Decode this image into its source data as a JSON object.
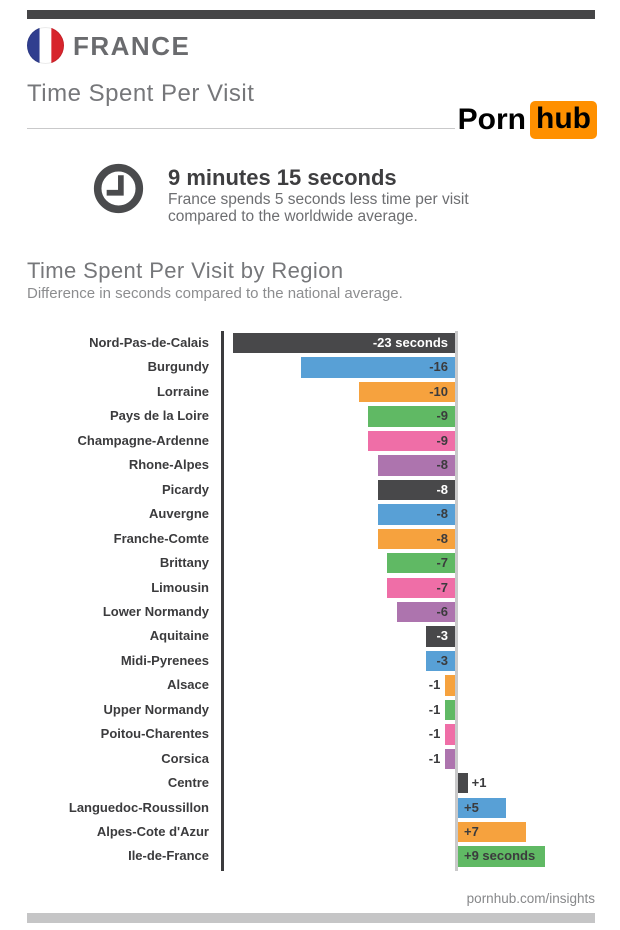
{
  "header": {
    "country": "FRANCE",
    "title": "Time Spent Per Visit",
    "flag": {
      "blue": "#303e8f",
      "white": "#ffffff",
      "red": "#d7242c"
    },
    "logo": {
      "porn": "Porn",
      "hub": "hub",
      "hub_bg": "#ff9000"
    }
  },
  "stat": {
    "clock_icon_color": "#4a4b4d",
    "headline": "9 minutes 15 seconds",
    "line1": "France spends 5 seconds less time per visit",
    "line2": "compared to the worldwide average."
  },
  "section": {
    "title": "Time Spent Per Visit by Region",
    "subtitle": "Difference in seconds compared to the national average."
  },
  "chart_data": {
    "type": "bar",
    "orientation": "horizontal",
    "title": "Time Spent Per Visit by Region",
    "subtitle": "Difference in seconds compared to the national average.",
    "unit": "seconds",
    "xlim": [
      -23,
      9
    ],
    "grid": false,
    "legend": "none",
    "categories": [
      "Nord-Pas-de-Calais",
      "Burgundy",
      "Lorraine",
      "Pays de la Loire",
      "Champagne-Ardenne",
      "Rhone-Alpes",
      "Picardy",
      "Auvergne",
      "Franche-Comte",
      "Brittany",
      "Limousin",
      "Lower Normandy",
      "Aquitaine",
      "Midi-Pyrenees",
      "Alsace",
      "Upper Normandy",
      "Poitou-Charentes",
      "Corsica",
      "Centre",
      "Languedoc-Roussillon",
      "Alpes-Cote d'Azur",
      "Ile-de-France"
    ],
    "values": [
      -23,
      -16,
      -10,
      -9,
      -9,
      -8,
      -8,
      -8,
      -8,
      -7,
      -7,
      -6,
      -3,
      -3,
      -1,
      -1,
      -1,
      -1,
      1,
      5,
      7,
      9
    ],
    "value_labels": [
      "-23 seconds",
      "-16",
      "-10",
      "-9",
      "-9",
      "-8",
      "-8",
      "-8",
      "-8",
      "-7",
      "-7",
      "-6",
      "-3",
      "-3",
      "-1",
      "-1",
      "-1",
      "-1",
      "+1",
      "+5",
      "+7",
      "+9 seconds"
    ],
    "palette": [
      "#48484a",
      "#58a0d6",
      "#f6a23e",
      "#60b964",
      "#ef6ea7",
      "#ad74ae"
    ],
    "axis_color": "#3b3b3d",
    "zero_line_color": "#c9c9ca",
    "bar_label_color": "#3b3b3d",
    "bar_label_color_on_dark": "#ffffff"
  },
  "footer": {
    "url": "pornhub.com/insights"
  }
}
